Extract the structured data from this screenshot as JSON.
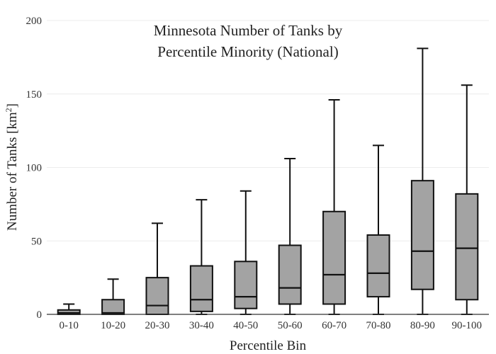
{
  "chart_data": {
    "type": "box",
    "title_lines": [
      "Minnesota Number of Tanks by",
      "Percentile Minority (National)"
    ],
    "xlabel": "Percentile Bin",
    "ylabel_main": "Number of Tanks  [km",
    "ylabel_sup": "2",
    "ylabel_end": "]",
    "ylim": [
      0,
      200
    ],
    "yticks": [
      0,
      50,
      100,
      150,
      200
    ],
    "grid": true,
    "box_color": "#a3a3a3",
    "categories": [
      "0-10",
      "10-20",
      "20-30",
      "30-40",
      "40-50",
      "50-60",
      "60-70",
      "70-80",
      "80-90",
      "90-100"
    ],
    "boxes": [
      {
        "min": 0,
        "q1": 0,
        "median": 1,
        "q3": 3,
        "max": 7
      },
      {
        "min": 0,
        "q1": 0,
        "median": 1,
        "q3": 10,
        "max": 24
      },
      {
        "min": 0,
        "q1": 0,
        "median": 6,
        "q3": 25,
        "max": 62
      },
      {
        "min": 0,
        "q1": 2,
        "median": 10,
        "q3": 33,
        "max": 78
      },
      {
        "min": 0,
        "q1": 4,
        "median": 12,
        "q3": 36,
        "max": 84
      },
      {
        "min": 0,
        "q1": 7,
        "median": 18,
        "q3": 47,
        "max": 106
      },
      {
        "min": 0,
        "q1": 7,
        "median": 27,
        "q3": 70,
        "max": 146
      },
      {
        "min": 0,
        "q1": 12,
        "median": 28,
        "q3": 54,
        "max": 115
      },
      {
        "min": 0,
        "q1": 17,
        "median": 43,
        "q3": 91,
        "max": 181
      },
      {
        "min": 0,
        "q1": 10,
        "median": 45,
        "q3": 82,
        "max": 156
      }
    ]
  }
}
